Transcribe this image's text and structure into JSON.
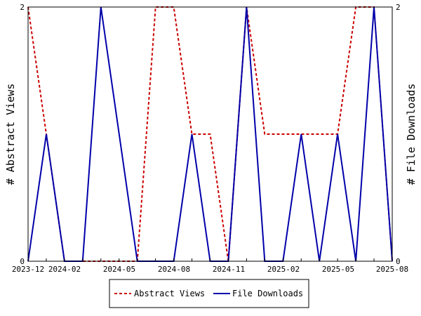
{
  "chart_data": {
    "type": "line",
    "x": [
      "2023-12",
      "2024-01",
      "2024-02",
      "2024-03",
      "2024-04",
      "2024-05",
      "2024-06",
      "2024-07",
      "2024-08",
      "2024-09",
      "2024-10",
      "2024-11",
      "2024-12",
      "2025-01",
      "2025-02",
      "2025-03",
      "2025-04",
      "2025-05",
      "2025-06",
      "2025-07",
      "2025-08"
    ],
    "x_tick_labels": [
      "2023-12",
      "2024-02",
      "2024-05",
      "2024-08",
      "2024-11",
      "2025-02",
      "2025-05",
      "2025-08"
    ],
    "x_tick_months": [
      "2023-12",
      "2024-02",
      "2024-05",
      "2024-08",
      "2024-11",
      "2025-02",
      "2025-05",
      "2025-08"
    ],
    "series": [
      {
        "name": "Abstract Views",
        "axis": "left",
        "color": "#cc0000",
        "dash": true,
        "values": [
          2,
          1,
          0,
          0,
          0,
          0,
          0,
          2,
          2,
          1,
          1,
          0,
          2,
          1,
          1,
          1,
          1,
          1,
          2,
          2,
          0
        ]
      },
      {
        "name": "File Downloads",
        "axis": "right",
        "color": "#0000aa",
        "dash": false,
        "values": [
          0,
          1,
          0,
          0,
          2,
          1,
          0,
          0,
          0,
          1,
          0,
          0,
          2,
          0,
          0,
          1,
          0,
          1,
          0,
          2,
          0
        ]
      }
    ],
    "ylabel_left": "# Abstract Views",
    "ylabel_right": "# File Downloads",
    "ylim": [
      0,
      2
    ],
    "y_ticks": [
      "0",
      "2"
    ],
    "grid": false,
    "legend_position": "bottom"
  }
}
